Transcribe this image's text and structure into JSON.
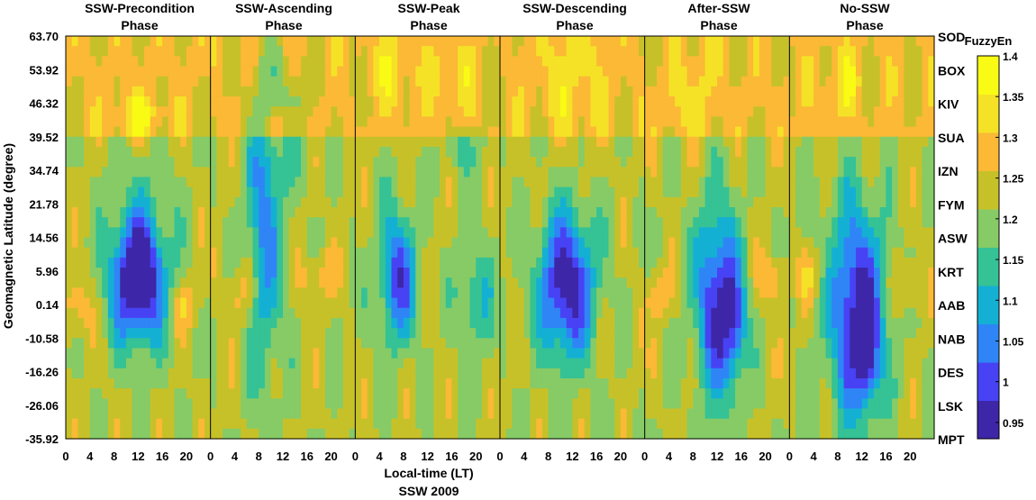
{
  "chart_data": {
    "type": "heatmap",
    "title": "SSW 2009",
    "xlabel": "Local-time (LT)",
    "ylabel": "Geomagnetic Latitude (degree)",
    "x_ticks": [
      "0",
      "4",
      "8",
      "12",
      "16",
      "20"
    ],
    "y_ticks": [
      "63.70",
      "53.92",
      "46.32",
      "39.52",
      "34.74",
      "21.78",
      "14.56",
      "5.96",
      "0.14",
      "-10.58",
      "-16.26",
      "-26.06",
      "-35.92"
    ],
    "stations": [
      "SOD",
      "BOX",
      "KIV",
      "SUA",
      "IZN",
      "FYM",
      "ASW",
      "KRT",
      "AAB",
      "NAB",
      "DES",
      "LSK",
      "MPT"
    ],
    "panels": [
      {
        "title_line1": "SSW-Precondition",
        "title_line2": "Phase"
      },
      {
        "title_line1": "SSW-Ascending",
        "title_line2": "Phase"
      },
      {
        "title_line1": "SSW-Peak",
        "title_line2": "Phase"
      },
      {
        "title_line1": "SSW-Descending",
        "title_line2": "Phase"
      },
      {
        "title_line1": "After-SSW",
        "title_line2": "Phase"
      },
      {
        "title_line1": "No-SSW",
        "title_line2": "Phase"
      }
    ],
    "colorbar": {
      "label": "FuzzyEn",
      "range": [
        0.93,
        1.4
      ],
      "ticks": [
        "1.4",
        "1.35",
        "1.3",
        "1.25",
        "1.2",
        "1.15",
        "1.1",
        "1.05",
        "1",
        "0.95"
      ]
    },
    "colormap": [
      "#3e26a8",
      "#4743f4",
      "#2f85f6",
      "#14b0d4",
      "#35c295",
      "#86cb66",
      "#c7c129",
      "#fbb935",
      "#f5e226",
      "#f9fb15"
    ],
    "contour_line_color": "#000000",
    "grid": false,
    "legend": "colorbar-right"
  }
}
